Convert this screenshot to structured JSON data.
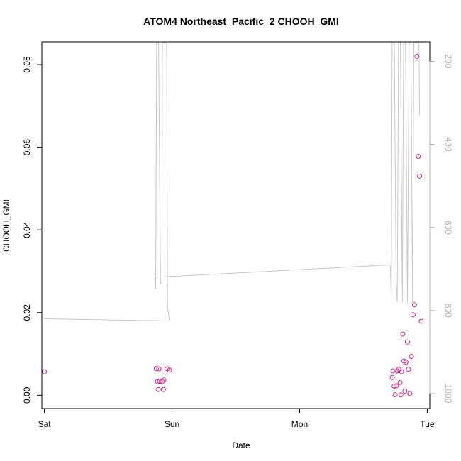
{
  "chart_data": {
    "type": "scatter",
    "title": "ATOM4 Northeast_Pacific_2 CHOOH_GMI",
    "xlabel": "Date",
    "ylabel": "CHOOH_GMI",
    "x_unit": "days from Sat 00:00",
    "xlim": [
      -0.02,
      3.02
    ],
    "ylim": [
      -0.0032,
      0.0855
    ],
    "x_ticks": [
      {
        "value": 0,
        "label": "Sat"
      },
      {
        "value": 1,
        "label": "Sun"
      },
      {
        "value": 2,
        "label": "Mon"
      },
      {
        "value": 3,
        "label": "Tue"
      }
    ],
    "y_ticks": [
      {
        "value": 0.0,
        "label": "0.00"
      },
      {
        "value": 0.02,
        "label": "0.02"
      },
      {
        "value": 0.04,
        "label": "0.04"
      },
      {
        "value": 0.06,
        "label": "0.06"
      },
      {
        "value": 0.08,
        "label": "0.08"
      }
    ],
    "y2lim": [
      1036,
      153
    ],
    "y2_ticks": [
      {
        "value": 200,
        "label": "200"
      },
      {
        "value": 400,
        "label": "400"
      },
      {
        "value": 600,
        "label": "600"
      },
      {
        "value": 800,
        "label": "800"
      },
      {
        "value": 1000,
        "label": "1000"
      }
    ],
    "colors": {
      "points": "#e8208a",
      "pressure_line": "#c8c8c8",
      "axis": "#000000",
      "y2_axis_labels": "#b4b4b4"
    },
    "series": [
      {
        "type": "scatter",
        "marker": "open-circle",
        "points": [
          [
            0.0,
            0.0057
          ],
          [
            0.877,
            0.0065
          ],
          [
            0.897,
            0.0064
          ],
          [
            0.962,
            0.0064
          ],
          [
            0.886,
            0.0033
          ],
          [
            0.903,
            0.0034
          ],
          [
            0.923,
            0.0033
          ],
          [
            0.936,
            0.0037
          ],
          [
            0.981,
            0.0061
          ],
          [
            0.892,
            0.0014
          ],
          [
            0.932,
            0.0014
          ],
          [
            2.726,
            0.0043
          ],
          [
            2.731,
            0.0059
          ],
          [
            2.741,
            0.0022
          ],
          [
            2.757,
            0.0023
          ],
          [
            2.765,
            0.0059
          ],
          [
            2.777,
            0.0063
          ],
          [
            2.787,
            0.0031
          ],
          [
            2.798,
            0.0057
          ],
          [
            2.748,
            0.0001
          ],
          [
            2.793,
            0.0001
          ],
          [
            2.808,
            0.0148
          ],
          [
            2.817,
            0.0083
          ],
          [
            2.825,
            0.001
          ],
          [
            2.833,
            0.008
          ],
          [
            2.845,
            0.0129
          ],
          [
            2.853,
            0.0063
          ],
          [
            2.863,
            0.0004
          ],
          [
            2.876,
            0.0094
          ],
          [
            2.889,
            0.0195
          ],
          [
            2.9,
            0.0219
          ],
          [
            2.919,
            0.082
          ],
          [
            2.93,
            0.0578
          ],
          [
            2.94,
            0.053
          ],
          [
            2.953,
            0.0179
          ]
        ]
      },
      {
        "type": "line",
        "axis": "y2",
        "points": [
          [
            0.0,
            820
          ],
          [
            0.98,
            825
          ],
          [
            0.965,
            790
          ],
          [
            0.958,
            155
          ],
          [
            0.925,
            155
          ],
          [
            0.921,
            735
          ],
          [
            0.91,
            735
          ],
          [
            0.895,
            155
          ],
          [
            0.88,
            155
          ],
          [
            0.872,
            750
          ],
          [
            0.865,
            720
          ],
          [
            2.71,
            690
          ],
          [
            2.718,
            760
          ],
          [
            2.725,
            155
          ],
          [
            2.742,
            155
          ],
          [
            2.756,
            730
          ],
          [
            2.765,
            780
          ],
          [
            2.775,
            155
          ],
          [
            2.79,
            155
          ],
          [
            2.805,
            780
          ],
          [
            2.815,
            155
          ],
          [
            2.83,
            155
          ],
          [
            2.845,
            780
          ],
          [
            2.858,
            155
          ],
          [
            2.872,
            155
          ],
          [
            2.885,
            780
          ],
          [
            2.895,
            155
          ],
          [
            2.935,
            155
          ],
          [
            2.94,
            330
          ]
        ]
      }
    ]
  }
}
